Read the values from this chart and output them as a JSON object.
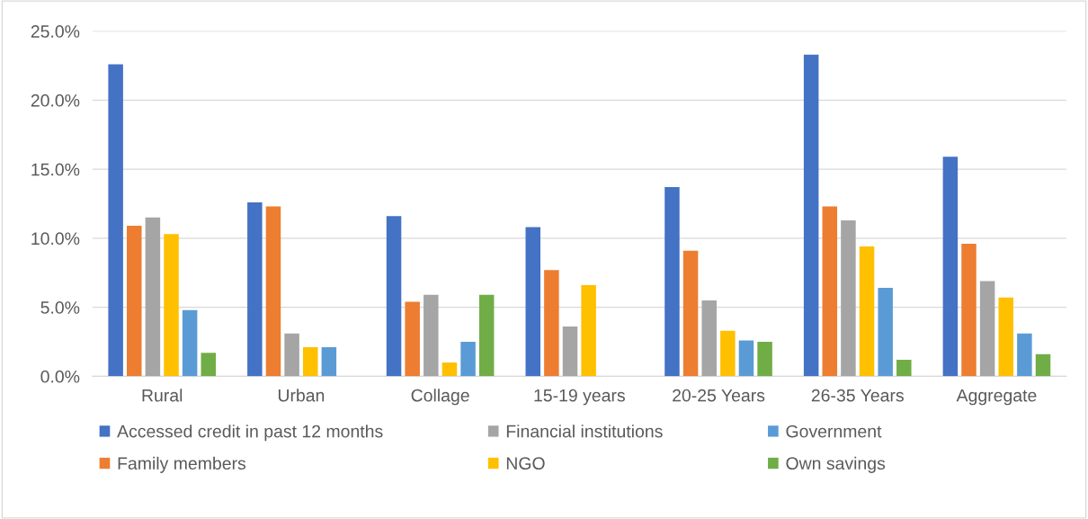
{
  "chart_data": {
    "type": "bar",
    "categories": [
      "Rural",
      "Urban",
      "Collage",
      "15-19 years",
      "20-25 Years",
      "26-35 Years",
      "Aggregate"
    ],
    "series": [
      {
        "name": "Accessed credit in past 12 months",
        "color": "#4472c4",
        "values": [
          22.6,
          12.6,
          11.6,
          10.8,
          13.7,
          23.3,
          15.9
        ]
      },
      {
        "name": "Family members",
        "color": "#ed7d31",
        "values": [
          10.9,
          12.3,
          5.4,
          7.7,
          9.1,
          12.3,
          9.6
        ]
      },
      {
        "name": "Financial institutions",
        "color": "#a5a5a5",
        "values": [
          11.5,
          3.1,
          5.9,
          3.6,
          5.5,
          11.3,
          6.9
        ]
      },
      {
        "name": "NGO",
        "color": "#ffc000",
        "values": [
          10.3,
          2.1,
          1.0,
          6.6,
          3.3,
          9.4,
          5.7
        ]
      },
      {
        "name": "Government",
        "color": "#5b9bd5",
        "values": [
          4.8,
          2.1,
          2.5,
          0,
          2.6,
          6.4,
          3.1
        ]
      },
      {
        "name": "Own savings",
        "color": "#70ad47",
        "values": [
          1.7,
          0,
          5.9,
          0,
          2.5,
          1.2,
          1.6
        ]
      }
    ],
    "ylim": [
      0,
      25
    ],
    "yticks": [
      {
        "value": 0,
        "label": "0.0%"
      },
      {
        "value": 5,
        "label": "5.0%"
      },
      {
        "value": 10,
        "label": "10.0%"
      },
      {
        "value": 15,
        "label": "15.0%"
      },
      {
        "value": 20,
        "label": "20.0%"
      },
      {
        "value": 25,
        "label": "25.0%"
      }
    ],
    "grid": "y",
    "legend": "bottom"
  }
}
